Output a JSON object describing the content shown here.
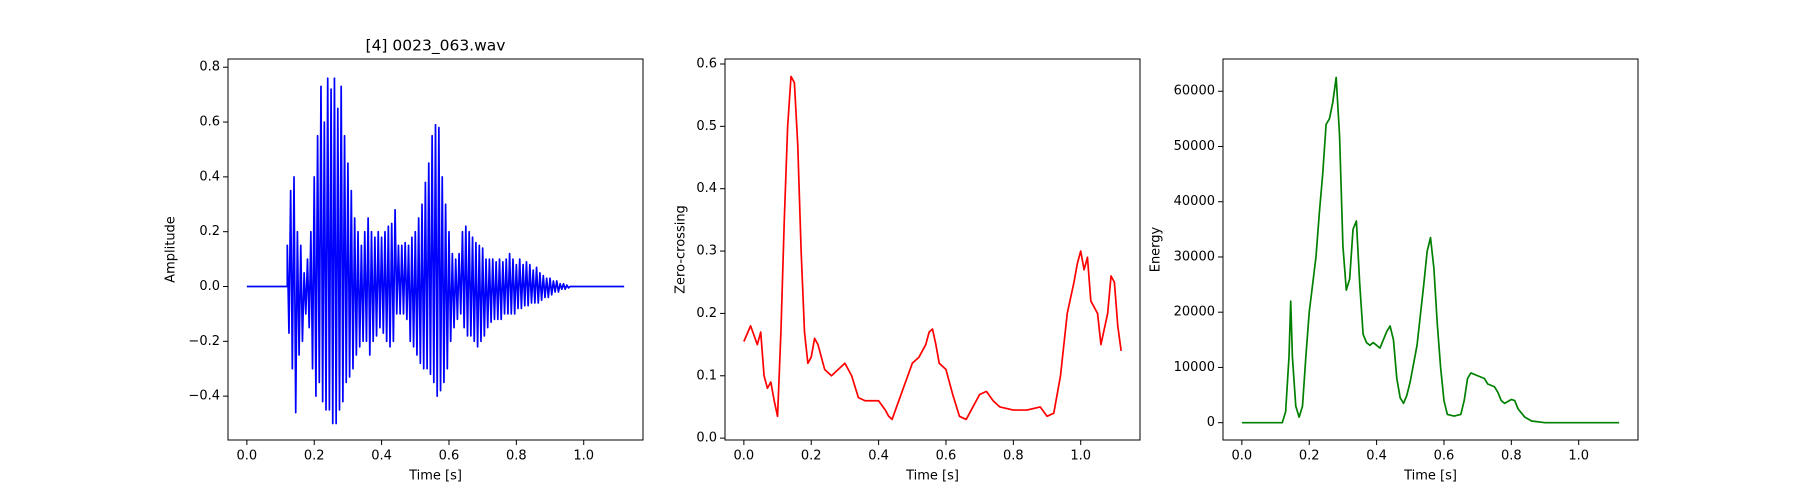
{
  "chart_data": [
    {
      "type": "line",
      "title": "[4] 0023_063.wav",
      "x_label": "Time [s]",
      "y_label": "Amplitude",
      "color": "blue",
      "xlim": [
        -0.056,
        1.176
      ],
      "ylim": [
        -0.56,
        0.83
      ],
      "xticks": [
        {
          "value": 0,
          "label": "0.0"
        },
        0.2,
        0.4,
        0.6,
        0.8,
        {
          "value": 1,
          "label": "1.0"
        }
      ],
      "yticks": [
        {
          "value": -0.4,
          "label": "−0.4"
        },
        {
          "value": -0.2,
          "label": "−0.2"
        },
        {
          "value": 0,
          "label": "0.0"
        },
        0.2,
        0.4,
        0.6,
        0.8
      ],
      "x": [
        0,
        0.12,
        0.12,
        0.125,
        0.13,
        0.135,
        0.14,
        0.145,
        0.15,
        0.155,
        0.16,
        0.165,
        0.17,
        0.175,
        0.18,
        0.185,
        0.19,
        0.195,
        0.2,
        0.205,
        0.21,
        0.215,
        0.22,
        0.225,
        0.23,
        0.235,
        0.24,
        0.245,
        0.25,
        0.255,
        0.26,
        0.265,
        0.27,
        0.275,
        0.28,
        0.285,
        0.29,
        0.295,
        0.3,
        0.305,
        0.31,
        0.315,
        0.32,
        0.325,
        0.33,
        0.335,
        0.34,
        0.345,
        0.35,
        0.355,
        0.36,
        0.365,
        0.37,
        0.375,
        0.38,
        0.385,
        0.39,
        0.395,
        0.4,
        0.405,
        0.41,
        0.415,
        0.42,
        0.425,
        0.43,
        0.435,
        0.44,
        0.445,
        0.45,
        0.455,
        0.46,
        0.465,
        0.47,
        0.475,
        0.48,
        0.485,
        0.49,
        0.495,
        0.5,
        0.505,
        0.51,
        0.515,
        0.52,
        0.525,
        0.53,
        0.535,
        0.54,
        0.545,
        0.55,
        0.555,
        0.56,
        0.565,
        0.57,
        0.575,
        0.58,
        0.585,
        0.59,
        0.595,
        0.6,
        0.605,
        0.61,
        0.615,
        0.62,
        0.625,
        0.63,
        0.635,
        0.64,
        0.645,
        0.65,
        0.655,
        0.66,
        0.665,
        0.67,
        0.675,
        0.68,
        0.685,
        0.69,
        0.695,
        0.7,
        0.705,
        0.71,
        0.715,
        0.72,
        0.725,
        0.73,
        0.735,
        0.74,
        0.745,
        0.75,
        0.755,
        0.76,
        0.765,
        0.77,
        0.775,
        0.78,
        0.785,
        0.79,
        0.795,
        0.8,
        0.805,
        0.81,
        0.815,
        0.82,
        0.825,
        0.83,
        0.835,
        0.84,
        0.845,
        0.85,
        0.855,
        0.86,
        0.865,
        0.87,
        0.875,
        0.88,
        0.885,
        0.89,
        0.895,
        0.9,
        0.905,
        0.91,
        0.915,
        0.92,
        0.925,
        0.93,
        0.935,
        0.94,
        0.945,
        0.95,
        0.955,
        0.96,
        1.12
      ],
      "values": [
        0,
        0,
        0.15,
        -0.17,
        0.35,
        -0.3,
        0.4,
        -0.46,
        0.2,
        -0.25,
        0.15,
        -0.2,
        0.05,
        -0.1,
        0.1,
        -0.15,
        0.2,
        -0.3,
        0.4,
        -0.4,
        0.55,
        -0.35,
        0.73,
        -0.42,
        0.6,
        -0.45,
        0.76,
        -0.45,
        0.72,
        -0.5,
        0.76,
        -0.5,
        0.65,
        -0.45,
        0.73,
        -0.42,
        0.55,
        -0.35,
        0.45,
        -0.33,
        0.35,
        -0.3,
        0.25,
        -0.25,
        0.2,
        -0.22,
        0.15,
        -0.2,
        0.2,
        -0.2,
        0.25,
        -0.25,
        0.2,
        -0.2,
        0.18,
        -0.18,
        0.2,
        -0.15,
        0.18,
        -0.17,
        0.2,
        -0.2,
        0.22,
        -0.22,
        0.23,
        -0.2,
        0.28,
        -0.1,
        0.15,
        -0.1,
        0.15,
        -0.1,
        0.16,
        -0.12,
        0.15,
        -0.2,
        0.18,
        -0.22,
        0.2,
        -0.25,
        0.25,
        -0.28,
        0.3,
        -0.3,
        0.38,
        -0.3,
        0.45,
        -0.32,
        0.55,
        -0.35,
        0.59,
        -0.4,
        0.58,
        -0.38,
        0.4,
        -0.35,
        0.3,
        -0.3,
        0.2,
        -0.2,
        0.12,
        -0.15,
        0.1,
        -0.12,
        0.12,
        -0.1,
        0.2,
        -0.15,
        0.22,
        -0.18,
        0.2,
        -0.18,
        0.18,
        -0.2,
        0.16,
        -0.22,
        0.15,
        -0.2,
        0.14,
        -0.18,
        0.1,
        -0.15,
        0.1,
        -0.13,
        0.1,
        -0.12,
        0.09,
        -0.12,
        0.1,
        -0.12,
        0.09,
        -0.1,
        0.1,
        -0.1,
        0.12,
        -0.1,
        0.1,
        -0.1,
        0.08,
        -0.08,
        0.1,
        -0.08,
        0.08,
        -0.07,
        0.09,
        -0.07,
        0.08,
        -0.06,
        0.06,
        -0.06,
        0.07,
        -0.06,
        0.05,
        -0.05,
        0.04,
        -0.04,
        0.03,
        -0.04,
        0.03,
        -0.03,
        0.02,
        -0.02,
        0.02,
        -0.02,
        0.01,
        -0.01,
        0.01,
        -0.01,
        0.005,
        -0.005,
        0,
        0
      ]
    },
    {
      "type": "line",
      "x_label": "Time [s]",
      "y_label": "Zero-crossing",
      "color": "red",
      "xlim": [
        -0.056,
        1.176
      ],
      "ylim": [
        -0.003,
        0.608
      ],
      "xticks": [
        {
          "value": 0,
          "label": "0.0"
        },
        0.2,
        0.4,
        0.6,
        0.8,
        {
          "value": 1,
          "label": "1.0"
        }
      ],
      "yticks": [
        {
          "value": 0,
          "label": "0.0"
        },
        0.1,
        0.2,
        0.3,
        0.4,
        0.5,
        0.6
      ],
      "x": [
        0,
        0.02,
        0.04,
        0.05,
        0.06,
        0.07,
        0.08,
        0.09,
        0.1,
        0.11,
        0.12,
        0.13,
        0.14,
        0.15,
        0.16,
        0.17,
        0.18,
        0.19,
        0.2,
        0.21,
        0.22,
        0.23,
        0.24,
        0.26,
        0.28,
        0.3,
        0.32,
        0.34,
        0.36,
        0.38,
        0.4,
        0.42,
        0.43,
        0.44,
        0.46,
        0.48,
        0.5,
        0.52,
        0.54,
        0.55,
        0.56,
        0.57,
        0.58,
        0.6,
        0.62,
        0.64,
        0.66,
        0.68,
        0.7,
        0.72,
        0.74,
        0.76,
        0.8,
        0.84,
        0.88,
        0.9,
        0.92,
        0.94,
        0.96,
        0.98,
        0.99,
        1,
        1.01,
        1.02,
        1.03,
        1.05,
        1.06,
        1.08,
        1.09,
        1.1,
        1.11,
        1.12
      ],
      "values": [
        0.155,
        0.18,
        0.15,
        0.17,
        0.1,
        0.08,
        0.09,
        0.06,
        0.035,
        0.17,
        0.35,
        0.5,
        0.58,
        0.57,
        0.47,
        0.3,
        0.17,
        0.12,
        0.13,
        0.16,
        0.15,
        0.13,
        0.11,
        0.1,
        0.11,
        0.12,
        0.1,
        0.065,
        0.06,
        0.06,
        0.06,
        0.045,
        0.035,
        0.03,
        0.06,
        0.09,
        0.12,
        0.13,
        0.15,
        0.17,
        0.175,
        0.15,
        0.12,
        0.11,
        0.07,
        0.035,
        0.03,
        0.05,
        0.07,
        0.075,
        0.06,
        0.05,
        0.045,
        0.045,
        0.05,
        0.035,
        0.04,
        0.1,
        0.2,
        0.25,
        0.28,
        0.3,
        0.27,
        0.29,
        0.22,
        0.2,
        0.15,
        0.2,
        0.26,
        0.25,
        0.18,
        0.14
      ]
    },
    {
      "type": "line",
      "x_label": "Time [s]",
      "y_label": "Energy",
      "color": "green",
      "xlim": [
        -0.056,
        1.176
      ],
      "ylim": [
        -3135,
        65835
      ],
      "xticks": [
        {
          "value": 0,
          "label": "0.0"
        },
        0.2,
        0.4,
        0.6,
        0.8,
        {
          "value": 1,
          "label": "1.0"
        }
      ],
      "yticks": [
        0,
        10000,
        20000,
        30000,
        40000,
        50000,
        60000
      ],
      "x": [
        0,
        0.12,
        0.13,
        0.14,
        0.145,
        0.15,
        0.16,
        0.17,
        0.18,
        0.19,
        0.2,
        0.22,
        0.23,
        0.24,
        0.25,
        0.26,
        0.27,
        0.28,
        0.29,
        0.3,
        0.31,
        0.32,
        0.33,
        0.34,
        0.35,
        0.36,
        0.37,
        0.38,
        0.39,
        0.4,
        0.41,
        0.42,
        0.43,
        0.44,
        0.45,
        0.46,
        0.47,
        0.48,
        0.49,
        0.5,
        0.52,
        0.54,
        0.55,
        0.56,
        0.57,
        0.58,
        0.59,
        0.6,
        0.61,
        0.63,
        0.65,
        0.66,
        0.67,
        0.68,
        0.7,
        0.72,
        0.73,
        0.75,
        0.76,
        0.77,
        0.78,
        0.8,
        0.81,
        0.82,
        0.84,
        0.86,
        0.9,
        1.12
      ],
      "values": [
        0,
        0,
        2000,
        12000,
        22000,
        12000,
        3000,
        1000,
        3000,
        12000,
        20000,
        30000,
        38000,
        45000,
        54000,
        55000,
        58000,
        62500,
        52000,
        32000,
        24000,
        26000,
        35000,
        36500,
        25000,
        16000,
        14500,
        14000,
        14500,
        14000,
        13500,
        15000,
        16500,
        17500,
        15000,
        8000,
        4500,
        3500,
        5000,
        7500,
        14000,
        25000,
        31000,
        33500,
        28000,
        18000,
        10000,
        4000,
        1500,
        1200,
        1500,
        4000,
        8000,
        9000,
        8500,
        8000,
        7000,
        6500,
        5500,
        4000,
        3500,
        4200,
        4000,
        2500,
        1000,
        300,
        0,
        0
      ]
    }
  ]
}
